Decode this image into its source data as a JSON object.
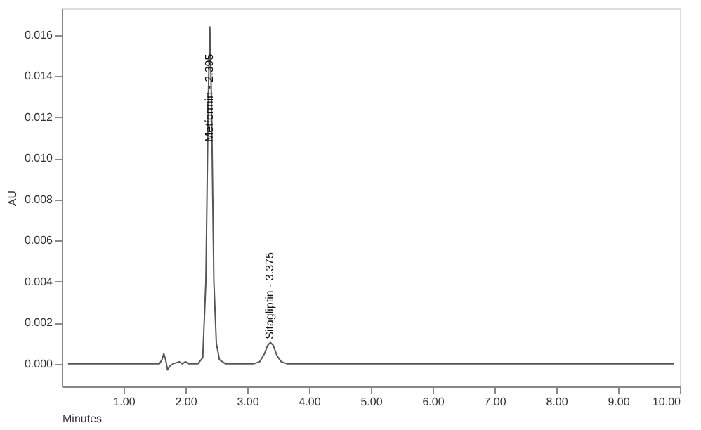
{
  "chart_data": {
    "type": "line",
    "xlabel": "Minutes",
    "ylabel": "AU",
    "x": [
      0.1,
      1.5,
      1.58,
      1.62,
      1.65,
      1.68,
      1.71,
      1.75,
      1.8,
      1.9,
      1.95,
      2.0,
      2.05,
      2.2,
      2.28,
      2.33,
      2.37,
      2.395,
      2.42,
      2.46,
      2.5,
      2.55,
      2.65,
      3.1,
      3.2,
      3.28,
      3.33,
      3.375,
      3.42,
      3.48,
      3.55,
      3.65,
      9.9
    ],
    "series": [
      {
        "color": "#555555",
        "values": [
          0,
          0,
          0,
          0.0002,
          0.0005,
          0.0002,
          -0.0003,
          -0.0001,
          0,
          0.0001,
          0,
          0.0001,
          0,
          0,
          0.0003,
          0.004,
          0.013,
          0.0164,
          0.013,
          0.004,
          0.001,
          0.0002,
          0,
          0,
          0.0001,
          0.0005,
          0.0009,
          0.00104,
          0.0009,
          0.0004,
          0.0001,
          0,
          0
        ]
      }
    ],
    "xlim": [
      0,
      10
    ],
    "ylim": [
      -0.0011,
      0.0173
    ],
    "xticks": [
      {
        "value": 1,
        "label": "1.00"
      },
      {
        "value": 2,
        "label": "2.00"
      },
      {
        "value": 3,
        "label": "3.00"
      },
      {
        "value": 4,
        "label": "4.00"
      },
      {
        "value": 5,
        "label": "5.00"
      },
      {
        "value": 6,
        "label": "6.00"
      },
      {
        "value": 7,
        "label": "7.00"
      },
      {
        "value": 8,
        "label": "8.00"
      },
      {
        "value": 9,
        "label": "9.00"
      },
      {
        "value": 10,
        "label": "10.00"
      }
    ],
    "yticks": [
      {
        "value": 0,
        "label": "0.000"
      },
      {
        "value": 0.002,
        "label": "0.002"
      },
      {
        "value": 0.004,
        "label": "0.004"
      },
      {
        "value": 0.006,
        "label": "0.006"
      },
      {
        "value": 0.008,
        "label": "0.008"
      },
      {
        "value": 0.01,
        "label": "0.010"
      },
      {
        "value": 0.012,
        "label": "0.012"
      },
      {
        "value": 0.014,
        "label": "0.014"
      },
      {
        "value": 0.016,
        "label": "0.016"
      }
    ],
    "annotations": [
      {
        "text": "Metformin - 2.395",
        "x": 2.395,
        "y": 0.0108
      },
      {
        "text": "Sitagliptin - 3.375",
        "x": 3.375,
        "y": 0.0012
      }
    ],
    "grid": false,
    "marker": "none",
    "line_style": "solid"
  }
}
